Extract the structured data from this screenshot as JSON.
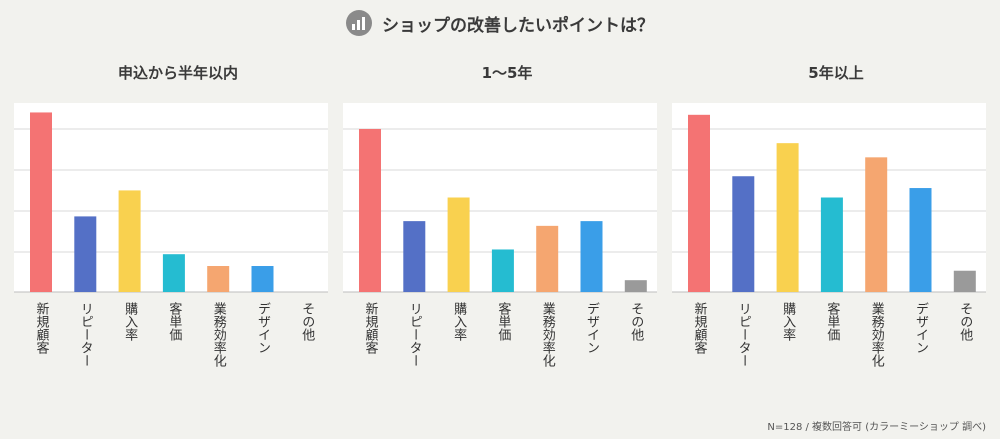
{
  "header": {
    "title": "ショップの改善したいポイントは？",
    "icon": "bar-chart-icon"
  },
  "footnote": "N=128 / 複数回答可 (カラーミーショップ 調べ)",
  "colors": [
    "#f47373",
    "#5470c6",
    "#f9d14f",
    "#25bcd1",
    "#f5a670",
    "#3a9ee8",
    "#9a9a9a"
  ],
  "chart_data": [
    {
      "type": "bar",
      "title": "申込から半年以内",
      "categories": [
        "新規顧客",
        "リピーター",
        "購入率",
        "客単価",
        "業務効率化",
        "デザイン",
        "その他"
      ],
      "values": [
        38,
        16,
        21.5,
        8,
        5.5,
        5.5,
        0
      ],
      "ylim": [
        0,
        40
      ],
      "grid": true
    },
    {
      "type": "bar",
      "title": "1〜5年",
      "categories": [
        "新規顧客",
        "リピーター",
        "購入率",
        "客単価",
        "業務効率化",
        "デザイン",
        "その他"
      ],
      "values": [
        34.5,
        15,
        20,
        9,
        14,
        15,
        2.5
      ],
      "ylim": [
        0,
        40
      ],
      "grid": true
    },
    {
      "type": "bar",
      "title": "5年以上",
      "categories": [
        "新規顧客",
        "リピーター",
        "購入率",
        "客単価",
        "業務効率化",
        "デザイン",
        "その他"
      ],
      "values": [
        37.5,
        24.5,
        31.5,
        20,
        28.5,
        22,
        4.5
      ],
      "ylim": [
        0,
        40
      ],
      "grid": true
    }
  ]
}
